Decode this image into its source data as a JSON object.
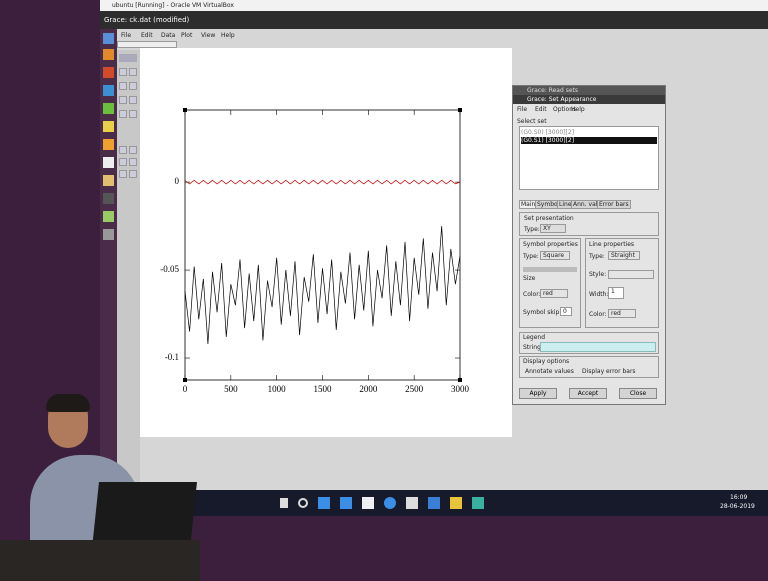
{
  "window": {
    "title": "ubuntu [Running] - Oracle VM VirtualBox",
    "app_title": "Grace: ck.dat (modified)",
    "menu": [
      "File",
      "Edit",
      "Data",
      "Plot",
      "View",
      "Help"
    ]
  },
  "dialog": {
    "title_read": "Grace: Read sets",
    "title": "Grace: Set Appearance",
    "menu": [
      "File",
      "Edit",
      "Options",
      "Help"
    ],
    "select_set": "Select set",
    "sets": [
      "(G0.S0) [3000][2]",
      "(G0.S1) [3000][2]"
    ],
    "tabs": [
      "Main",
      "Symbols",
      "Line",
      "Ann. values",
      "Error bars"
    ],
    "set_presentation": "Set presentation",
    "type_label": "Type:",
    "type_value": "XY",
    "symbol_properties": "Symbol properties",
    "line_properties": "Line properties",
    "symbol_type": "Square",
    "line_type": "Straight",
    "style_label": "Style:",
    "width_label": "Width:",
    "width_value": "1",
    "color_label": "Color:",
    "symbol_color": "red",
    "line_color": "red",
    "symbol_size": "Size",
    "symbol_fill": "Symbol skip:",
    "skip_value": "0",
    "legend": "Legend",
    "string_label": "String:",
    "display_options": "Display options",
    "annotate": "Annotate values",
    "error_bars": "Display error bars",
    "buttons": [
      "Apply",
      "Accept",
      "Close"
    ]
  },
  "taskbar": {
    "time": "16:09",
    "date": "28-06-2019"
  },
  "chart_data": {
    "type": "line",
    "x": [
      0,
      50,
      100,
      150,
      200,
      250,
      300,
      350,
      400,
      450,
      500,
      550,
      600,
      650,
      700,
      750,
      800,
      850,
      900,
      950,
      1000,
      1050,
      1100,
      1150,
      1200,
      1250,
      1300,
      1350,
      1400,
      1450,
      1500,
      1550,
      1600,
      1650,
      1700,
      1750,
      1800,
      1850,
      1900,
      1950,
      2000,
      2050,
      2100,
      2150,
      2200,
      2250,
      2300,
      2350,
      2400,
      2450,
      2500,
      2550,
      2600,
      2650,
      2700,
      2750,
      2800,
      2850,
      2900,
      2950,
      3000
    ],
    "series": [
      {
        "color": "#cc0000",
        "values": [
          0.001,
          -0.001,
          0.001,
          -0.001,
          0.001,
          -0.001,
          0.001,
          -0.001,
          0.001,
          -0.001,
          0.001,
          -0.001,
          0.001,
          -0.001,
          0.001,
          -0.001,
          0.001,
          -0.001,
          0.001,
          -0.001,
          0.001,
          -0.001,
          0.001,
          -0.001,
          0.001,
          -0.001,
          0.001,
          -0.001,
          0.001,
          -0.001,
          0.001,
          -0.001,
          0.001,
          -0.001,
          0.001,
          -0.001,
          0.001,
          -0.001,
          0.001,
          -0.001,
          0.001,
          -0.001,
          0.001,
          -0.001,
          0.001,
          -0.001,
          0.001,
          -0.001,
          0.001,
          -0.001,
          0.001,
          -0.001,
          0.001,
          -0.001,
          0.001,
          -0.001,
          0.001,
          -0.001,
          0.001,
          -0.001,
          0
        ]
      },
      {
        "color": "#000000",
        "values": [
          -0.062,
          -0.085,
          -0.048,
          -0.078,
          -0.055,
          -0.092,
          -0.051,
          -0.074,
          -0.046,
          -0.088,
          -0.058,
          -0.07,
          -0.044,
          -0.083,
          -0.052,
          -0.079,
          -0.047,
          -0.09,
          -0.056,
          -0.071,
          -0.043,
          -0.081,
          -0.05,
          -0.076,
          -0.045,
          -0.087,
          -0.054,
          -0.068,
          -0.041,
          -0.08,
          -0.049,
          -0.075,
          -0.044,
          -0.084,
          -0.051,
          -0.069,
          -0.04,
          -0.078,
          -0.047,
          -0.073,
          -0.039,
          -0.082,
          -0.05,
          -0.066,
          -0.036,
          -0.076,
          -0.045,
          -0.07,
          -0.034,
          -0.079,
          -0.043,
          -0.064,
          -0.032,
          -0.072,
          -0.04,
          -0.062,
          -0.025,
          -0.07,
          -0.038,
          -0.058,
          -0.042
        ]
      }
    ],
    "xlim": [
      0,
      3000
    ],
    "xticks": [
      0,
      500,
      1000,
      1500,
      2000,
      2500,
      3000
    ],
    "ylim": [
      -0.1125,
      0.041
    ],
    "yticks": [
      0,
      -0.05,
      -0.1
    ]
  }
}
